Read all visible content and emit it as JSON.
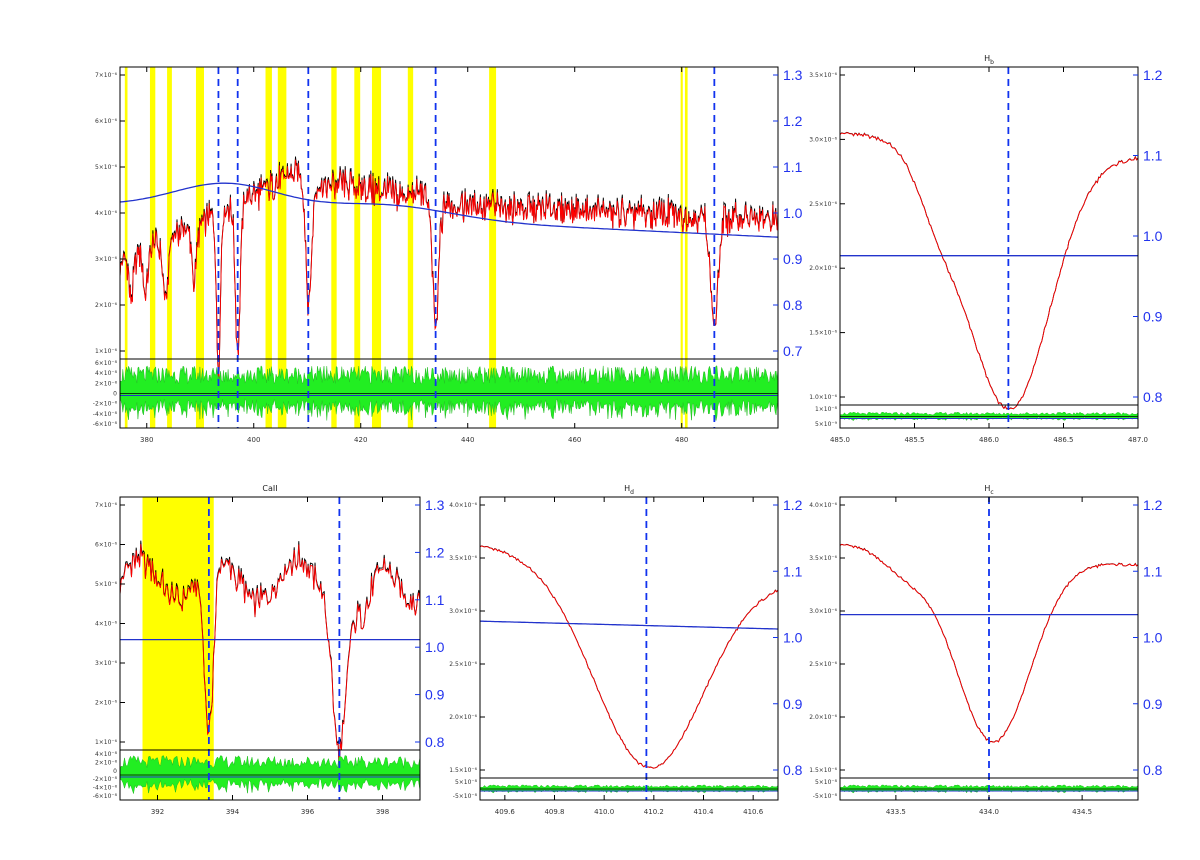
{
  "chart_data": [
    {
      "id": "full",
      "type": "line",
      "title": "",
      "xlim": [
        375,
        498
      ],
      "xticks": [
        "380",
        "400",
        "420",
        "440",
        "460",
        "480"
      ],
      "yticks_left": [
        "1×10⁻⁶",
        "2×10⁻⁶",
        "3×10⁻⁶",
        "4×10⁻⁶",
        "5×10⁻⁶",
        "6×10⁻⁶",
        "7×10⁻⁶"
      ],
      "yticks_right": [
        "0.7",
        "0.8",
        "0.9",
        "1.0",
        "1.1",
        "1.2",
        "1.3"
      ],
      "resid_ticks": [
        "6×10⁻⁸",
        "4×10⁻⁸",
        "2×10⁻⁸",
        "0",
        "-2×10⁻⁸",
        "-4×10⁻⁸",
        "-6×10⁻⁸"
      ],
      "dashed_lines": [
        393.4,
        397.0,
        410.2,
        434.0,
        486.1
      ],
      "masked_regions": [
        [
          375.9,
          376.4
        ],
        [
          380.6,
          381.6
        ],
        [
          383.8,
          384.7
        ],
        [
          389.2,
          390.7
        ],
        [
          402.2,
          403.4
        ],
        [
          404.5,
          406.1
        ],
        [
          414.5,
          415.5
        ],
        [
          418.8,
          419.9
        ],
        [
          422.1,
          423.8
        ],
        [
          428.8,
          429.8
        ],
        [
          444.0,
          445.3
        ],
        [
          479.8,
          480.2
        ],
        [
          480.6,
          481.1
        ]
      ],
      "series": [
        {
          "name": "",
          "color": "#000000",
          "role": "observed"
        },
        {
          "name": "",
          "color": "#ff0000",
          "role": "model"
        },
        {
          "name": "",
          "color": "#2233cc",
          "role": "response"
        },
        {
          "name": "",
          "color": "#22dd22",
          "role": "residual"
        }
      ],
      "grid": false
    },
    {
      "id": "hbeta",
      "type": "line",
      "title": "H",
      "title_sub": "b",
      "xlim": [
        485.0,
        487.0
      ],
      "xticks": [
        "485.0",
        "485.5",
        "486.0",
        "486.5",
        "487.0"
      ],
      "yticks_left": [
        "1.0×10⁻⁶",
        "1.5×10⁻⁶",
        "2.0×10⁻⁶",
        "2.5×10⁻⁶",
        "3.0×10⁻⁶",
        "3.5×10⁻⁶"
      ],
      "yticks_right": [
        "0.8",
        "0.9",
        "1.0",
        "1.1",
        "1.2"
      ],
      "resid_ticks": [
        "1×10⁻⁸",
        "5×10⁻⁹"
      ],
      "dashed_lines": [
        486.13
      ],
      "grid": false
    },
    {
      "id": "caii",
      "type": "line",
      "title": "CaII",
      "xlim": [
        391.0,
        399.0
      ],
      "xticks": [
        "392",
        "394",
        "396",
        "398"
      ],
      "yticks_left": [
        "1×10⁻⁶",
        "2×10⁻⁶",
        "3×10⁻⁶",
        "4×10⁻⁶",
        "5×10⁻⁶",
        "6×10⁻⁶",
        "7×10⁻⁶"
      ],
      "yticks_right": [
        "0.8",
        "0.9",
        "1.0",
        "1.1",
        "1.2",
        "1.3"
      ],
      "resid_ticks": [
        "4×10⁻⁸",
        "2×10⁻⁸",
        "0",
        "-2×10⁻⁸",
        "-4×10⁻⁸",
        "-6×10⁻⁸"
      ],
      "dashed_lines": [
        393.37,
        396.85
      ],
      "masked_regions": [
        [
          391.6,
          393.5
        ]
      ],
      "grid": false
    },
    {
      "id": "hdelta",
      "type": "line",
      "title": "H",
      "title_sub": "d",
      "xlim": [
        409.5,
        410.7
      ],
      "xticks": [
        "409.6",
        "409.8",
        "410.0",
        "410.2",
        "410.4",
        "410.6"
      ],
      "yticks_left": [
        "1.5×10⁻⁶",
        "2.0×10⁻⁶",
        "2.5×10⁻⁶",
        "3.0×10⁻⁶",
        "3.5×10⁻⁶",
        "4.0×10⁻⁶"
      ],
      "yticks_right": [
        "0.8",
        "0.9",
        "1.0",
        "1.1",
        "1.2"
      ],
      "resid_ticks": [
        "5×10⁻⁸",
        "-5×10⁻⁸"
      ],
      "dashed_lines": [
        410.17
      ],
      "grid": false
    },
    {
      "id": "hgamma",
      "type": "line",
      "title": "H",
      "title_sub": "c",
      "xlim": [
        433.2,
        434.8
      ],
      "xticks": [
        "433.5",
        "434.0",
        "434.5"
      ],
      "yticks_left": [
        "1.5×10⁻⁶",
        "2.0×10⁻⁶",
        "2.5×10⁻⁶",
        "3.0×10⁻⁶",
        "3.5×10⁻⁶",
        "4.0×10⁻⁶"
      ],
      "yticks_right": [
        "0.8",
        "0.9",
        "1.0",
        "1.1",
        "1.2"
      ],
      "resid_ticks": [
        "5×10⁻⁸",
        "-5×10⁻⁸"
      ],
      "dashed_lines": [
        434.0
      ],
      "grid": false
    }
  ]
}
